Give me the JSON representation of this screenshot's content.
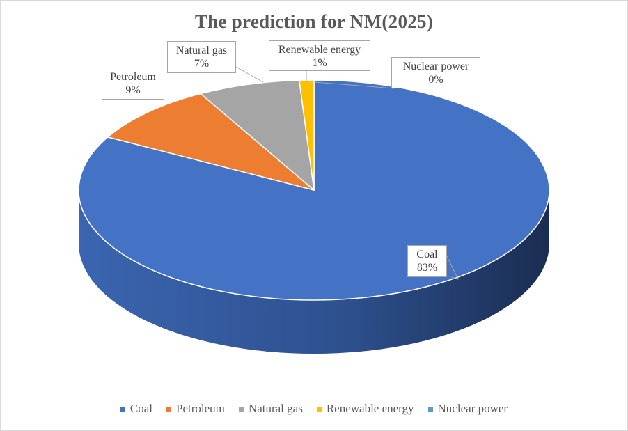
{
  "chart_data": {
    "type": "pie",
    "title": "The prediction for NM(2025)",
    "categories": [
      "Coal",
      "Petroleum",
      "Natural gas",
      "Renewable energy",
      "Nuclear power"
    ],
    "values": [
      83,
      9,
      7,
      1,
      0
    ],
    "value_labels": [
      "83%",
      "9%",
      "7%",
      "1%",
      "0%"
    ],
    "colors": [
      "#4472c4",
      "#ed7d31",
      "#a5a5a5",
      "#ffc000",
      "#5b9bd5"
    ],
    "legend_position": "bottom",
    "three_d": true
  }
}
